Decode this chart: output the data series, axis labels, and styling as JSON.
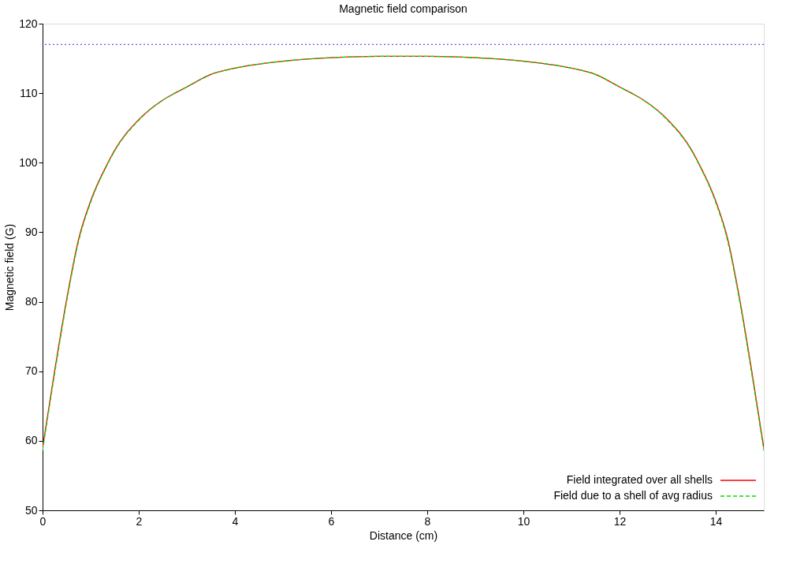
{
  "chart_data": {
    "type": "line",
    "title": "Magnetic field comparison",
    "xlabel": "Distance (cm)",
    "ylabel": "Magnetic field (G)",
    "xlim": [
      0,
      15
    ],
    "xticks": [
      0,
      2,
      4,
      6,
      8,
      10,
      12,
      14
    ],
    "ylim": [
      50,
      120
    ],
    "yticks": [
      50,
      60,
      70,
      80,
      90,
      100,
      110,
      120
    ],
    "x": [
      0,
      0.25,
      0.5,
      0.75,
      1,
      1.36,
      1.5,
      2,
      2.5,
      2.75,
      3,
      3.5,
      4,
      5,
      6,
      7,
      7.5,
      8,
      9,
      10,
      11,
      11.5,
      12,
      12.25,
      12.5,
      13,
      13.5,
      13.64,
      14,
      14.25,
      14.5,
      14.75,
      15
    ],
    "series": [
      {
        "name": "Field integrated over all shells",
        "color": "#ff0000",
        "line_style": "solid",
        "values": [
          59,
          70,
          80.3,
          89,
          94.5,
          100,
          101.8,
          106.2,
          109,
          110,
          110.9,
          112.7,
          113.6,
          114.6,
          115.1,
          115.3,
          115.3,
          115.3,
          115.1,
          114.6,
          113.6,
          112.7,
          110.9,
          110,
          109,
          106.2,
          101.8,
          100,
          94.5,
          89,
          80.3,
          70,
          59
        ]
      },
      {
        "name": "Field due to a shell of avg radius",
        "color": "#00dd00",
        "line_style": "dashed",
        "values": [
          58.6,
          69.6,
          80,
          88.7,
          94.3,
          99.9,
          101.7,
          106.1,
          109,
          110,
          110.9,
          112.7,
          113.6,
          114.6,
          115.1,
          115.3,
          115.3,
          115.3,
          115.1,
          114.6,
          113.6,
          112.7,
          110.9,
          110,
          109,
          106.1,
          101.7,
          99.9,
          94.3,
          88.7,
          80,
          69.6,
          58.6
        ]
      }
    ],
    "ref_lines": [
      {
        "axis": "y",
        "value": 117,
        "color": "#5555ff",
        "line_style": "dotted"
      }
    ],
    "legend": "bottom right",
    "grid": false,
    "marker": "none"
  }
}
